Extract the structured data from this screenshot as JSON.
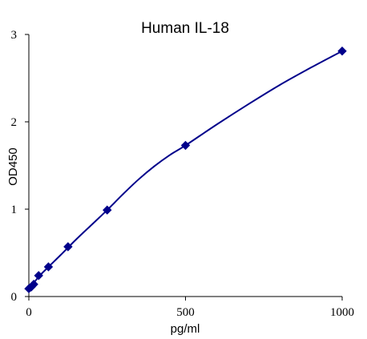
{
  "chart_data": {
    "type": "scatter",
    "title": "Human    IL-18",
    "xlabel": "pg/ml",
    "ylabel": "OD450",
    "xlim": [
      0,
      1000
    ],
    "ylim": [
      0,
      3
    ],
    "xticks": [
      0,
      500,
      1000
    ],
    "yticks": [
      0,
      1,
      2,
      3
    ],
    "xtick_labels": [
      "0",
      "500",
      "1000"
    ],
    "ytick_labels": [
      "0",
      "1",
      "2",
      "3"
    ],
    "grid": false,
    "legend": "none",
    "colors": {
      "series": "#00008b",
      "axis": "#000000"
    },
    "marker": "diamond",
    "series": [
      {
        "x": [
          0,
          7.8,
          15.6,
          31.25,
          62.5,
          125,
          250,
          500,
          1000
        ],
        "y": [
          0.09,
          0.11,
          0.14,
          0.24,
          0.34,
          0.57,
          0.99,
          1.73,
          2.81
        ]
      }
    ],
    "curve": {
      "x": [
        0,
        30,
        60,
        100,
        150,
        200,
        250,
        300,
        350,
        400,
        450,
        500,
        600,
        700,
        800,
        900,
        1000
      ],
      "y": [
        0.08,
        0.22,
        0.33,
        0.47,
        0.65,
        0.82,
        0.99,
        1.17,
        1.34,
        1.49,
        1.62,
        1.73,
        1.97,
        2.2,
        2.42,
        2.62,
        2.81
      ]
    }
  }
}
